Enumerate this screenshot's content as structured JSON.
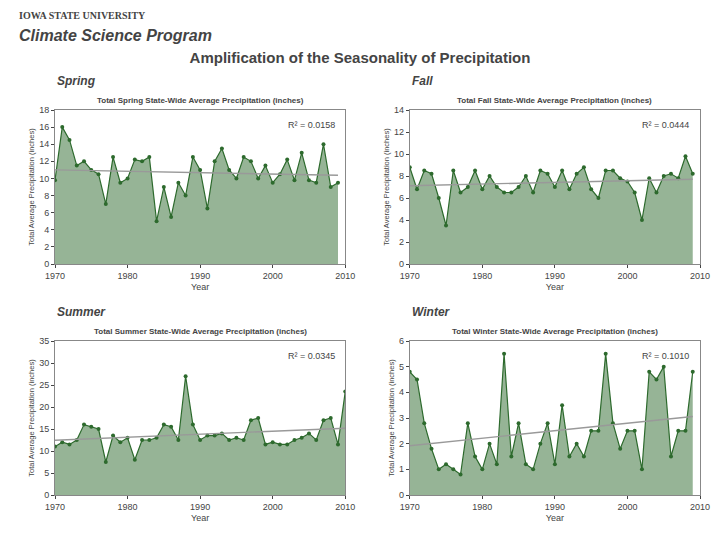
{
  "title": "Amplification of the Seasonality of Precipitation",
  "annotations": [
    "IOWA STATE UNIVERSITY",
    "Climate Science Program"
  ],
  "chart_data": [
    {
      "type": "line",
      "title": "Spring",
      "subtitle": "Total Spring State-Wide Average Precipitation (inches)",
      "annotations": [
        "R² = 0.0158"
      ],
      "xlabel": "Year",
      "ylabel": "Total Average Precipitation (inches)",
      "x": [
        1970,
        1971,
        1972,
        1973,
        1974,
        1975,
        1976,
        1977,
        1978,
        1979,
        1980,
        1981,
        1982,
        1983,
        1984,
        1985,
        1986,
        1987,
        1988,
        1989,
        1990,
        1991,
        1992,
        1993,
        1994,
        1995,
        1996,
        1997,
        1998,
        1999,
        2000,
        2001,
        2002,
        2003,
        2004,
        2005,
        2006,
        2007,
        2008,
        2009
      ],
      "series": [
        {
          "type": "area",
          "color": "#2d6a2d",
          "marker": "circle",
          "values": [
            9.8,
            16.0,
            14.5,
            11.5,
            12.0,
            11.0,
            10.5,
            7.0,
            12.5,
            9.5,
            10.0,
            12.2,
            12.0,
            12.5,
            5.0,
            9.0,
            5.5,
            9.5,
            8.0,
            12.5,
            11.0,
            6.5,
            12.0,
            13.5,
            11.0,
            10.0,
            12.5,
            12.0,
            10.0,
            11.5,
            9.5,
            10.5,
            12.2,
            9.8,
            13.0,
            9.8,
            9.5,
            14.0,
            9.0,
            9.5
          ]
        },
        {
          "type": "line",
          "color": "#999999",
          "x": [
            1970,
            2009
          ],
          "values": [
            10.9984,
            10.3666
          ]
        }
      ],
      "xlim": [
        1970,
        2010
      ],
      "xticks": [
        1970,
        1980,
        1990,
        2000,
        2010
      ],
      "ylim": [
        0,
        18
      ],
      "yticks": [
        0,
        2,
        4,
        6,
        8,
        10,
        12,
        14,
        16,
        18
      ],
      "grid": false
    },
    {
      "type": "line",
      "title": "Fall",
      "subtitle": "Total Fall State-Wide Average Precipitation (inches)",
      "annotations": [
        "R² = 0.0444"
      ],
      "xlabel": "Year",
      "ylabel": "Total Average Precipitation (inches)",
      "x": [
        1970,
        1971,
        1972,
        1973,
        1974,
        1975,
        1976,
        1977,
        1978,
        1979,
        1980,
        1981,
        1982,
        1983,
        1984,
        1985,
        1986,
        1987,
        1988,
        1989,
        1990,
        1991,
        1992,
        1993,
        1994,
        1995,
        1996,
        1997,
        1998,
        1999,
        2000,
        2001,
        2002,
        2003,
        2004,
        2005,
        2006,
        2007,
        2008,
        2009
      ],
      "series": [
        {
          "type": "area",
          "color": "#2d6a2d",
          "marker": "circle",
          "values": [
            8.8,
            6.8,
            8.5,
            8.2,
            6.0,
            3.5,
            8.5,
            6.5,
            7.0,
            8.5,
            6.8,
            8.0,
            7.0,
            6.5,
            6.5,
            7.0,
            8.0,
            6.5,
            8.5,
            8.2,
            7.0,
            8.5,
            6.8,
            8.2,
            8.8,
            6.8,
            6.0,
            8.5,
            8.5,
            7.8,
            7.5,
            6.5,
            4.0,
            7.8,
            6.5,
            8.0,
            8.2,
            7.8,
            9.8,
            8.2
          ]
        },
        {
          "type": "line",
          "color": "#999999",
          "x": [
            1970,
            2009
          ],
          "values": [
            7.1145,
            7.7105
          ]
        }
      ],
      "xlim": [
        1970,
        2010
      ],
      "xticks": [
        1970,
        1980,
        1990,
        2000,
        2010
      ],
      "ylim": [
        0,
        14
      ],
      "yticks": [
        0,
        2,
        4,
        6,
        8,
        10,
        12,
        14
      ],
      "grid": false
    },
    {
      "type": "line",
      "title": "Summer",
      "subtitle": "Total Summer State-Wide Average Precipitation (inches)",
      "annotations": [
        "R² = 0.0345"
      ],
      "xlabel": "Year",
      "ylabel": "Total Average Precipitation (inches)",
      "x": [
        1970,
        1971,
        1972,
        1973,
        1974,
        1975,
        1976,
        1977,
        1978,
        1979,
        1980,
        1981,
        1982,
        1983,
        1984,
        1985,
        1986,
        1987,
        1988,
        1989,
        1990,
        1991,
        1992,
        1993,
        1994,
        1995,
        1996,
        1997,
        1998,
        1999,
        2000,
        2001,
        2002,
        2003,
        2004,
        2005,
        2006,
        2007,
        2008,
        2009,
        2010
      ],
      "series": [
        {
          "type": "area",
          "color": "#2d6a2d",
          "marker": "circle",
          "values": [
            11.0,
            12.0,
            11.5,
            12.5,
            16.0,
            15.5,
            15.0,
            7.5,
            13.5,
            12.0,
            13.0,
            8.0,
            12.5,
            12.5,
            13.0,
            16.0,
            15.5,
            12.5,
            27.0,
            16.0,
            12.5,
            13.5,
            13.5,
            14.0,
            12.5,
            13.0,
            12.5,
            17.0,
            17.5,
            11.5,
            12.0,
            11.5,
            11.5,
            12.5,
            13.0,
            14.0,
            12.5,
            17.0,
            17.5,
            11.5,
            23.5
          ]
        },
        {
          "type": "line",
          "color": "#999999",
          "x": [
            1970,
            2010
          ],
          "values": [
            12.4512,
            15.1829
          ]
        }
      ],
      "xlim": [
        1970,
        2010
      ],
      "xticks": [
        1970,
        1980,
        1990,
        2000,
        2010
      ],
      "ylim": [
        0,
        35
      ],
      "yticks": [
        0,
        5,
        10,
        15,
        20,
        25,
        30,
        35
      ],
      "grid": false
    },
    {
      "type": "line",
      "title": "Winter",
      "subtitle": "Total Winter State-Wide Average Precipitation (inches)",
      "annotations": [
        "R² = 0.1010"
      ],
      "xlabel": "Year",
      "ylabel": "Total Average Precipitation (inches)",
      "x": [
        1970,
        1971,
        1972,
        1973,
        1974,
        1975,
        1976,
        1977,
        1978,
        1979,
        1980,
        1981,
        1982,
        1983,
        1984,
        1985,
        1986,
        1987,
        1988,
        1989,
        1990,
        1991,
        1992,
        1993,
        1994,
        1995,
        1996,
        1997,
        1998,
        1999,
        2000,
        2001,
        2002,
        2003,
        2004,
        2005,
        2006,
        2007,
        2008,
        2009
      ],
      "series": [
        {
          "type": "area",
          "color": "#2d6a2d",
          "marker": "circle",
          "values": [
            4.8,
            4.5,
            2.8,
            1.8,
            1.0,
            1.2,
            1.0,
            0.8,
            2.8,
            1.5,
            1.0,
            2.0,
            1.2,
            5.5,
            1.5,
            2.8,
            1.2,
            1.0,
            2.0,
            2.8,
            1.2,
            3.5,
            1.5,
            2.0,
            1.5,
            2.5,
            2.5,
            5.5,
            2.8,
            1.8,
            2.5,
            2.5,
            1.0,
            4.8,
            4.5,
            5.0,
            1.5,
            2.5,
            2.5,
            4.8
          ]
        },
        {
          "type": "line",
          "color": "#999999",
          "x": [
            1970,
            2009
          ],
          "values": [
            1.92,
            3.06
          ]
        }
      ],
      "xlim": [
        1970,
        2010
      ],
      "xticks": [
        1970,
        1980,
        1990,
        2000,
        2010
      ],
      "ylim": [
        0,
        6
      ],
      "yticks": [
        0,
        1,
        2,
        3,
        4,
        5,
        6
      ],
      "grid": false
    }
  ]
}
